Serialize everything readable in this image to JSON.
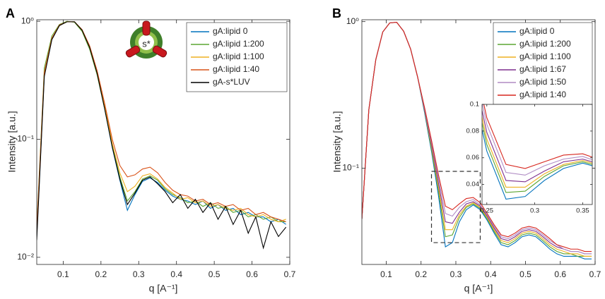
{
  "chart_data": [
    {
      "type": "line",
      "panel_label": "A",
      "icon_label": "s*",
      "xlabel": "q [A⁻¹]",
      "ylabel": "Intensity [a.u.]",
      "xlim": [
        0.03,
        0.7
      ],
      "ylim": [
        0.0087,
        1.03
      ],
      "log_y": true,
      "legend": "northeast",
      "xticks": [
        0.1,
        0.2,
        0.3,
        0.4,
        0.5,
        0.6,
        0.7
      ],
      "yticks": [
        {
          "value": 0.01,
          "label": "10⁻²"
        },
        {
          "value": 0.1,
          "label": "10⁻¹"
        },
        {
          "value": 1,
          "label": "10⁰"
        }
      ],
      "x": [
        0.03,
        0.05,
        0.07,
        0.09,
        0.11,
        0.13,
        0.15,
        0.17,
        0.19,
        0.21,
        0.23,
        0.25,
        0.27,
        0.29,
        0.31,
        0.33,
        0.35,
        0.37,
        0.39,
        0.41,
        0.43,
        0.45,
        0.47,
        0.49,
        0.51,
        0.53,
        0.55,
        0.57,
        0.59,
        0.61,
        0.63,
        0.65,
        0.67,
        0.69
      ],
      "series": [
        {
          "name": "gA:lipid 0",
          "color": "#0072bd",
          "values": [
            0.015,
            0.35,
            0.7,
            0.92,
            0.99,
            0.99,
            0.84,
            0.6,
            0.36,
            0.18,
            0.085,
            0.045,
            0.025,
            0.034,
            0.044,
            0.047,
            0.043,
            0.037,
            0.033,
            0.031,
            0.03,
            0.028,
            0.03,
            0.026,
            0.028,
            0.025,
            0.026,
            0.023,
            0.024,
            0.022,
            0.022,
            0.02,
            0.021,
            0.019
          ]
        },
        {
          "name": "gA:lipid 1:200",
          "color": "#5ca632",
          "values": [
            0.018,
            0.4,
            0.75,
            0.94,
            1.0,
            0.98,
            0.82,
            0.58,
            0.35,
            0.18,
            0.088,
            0.048,
            0.03,
            0.036,
            0.046,
            0.049,
            0.045,
            0.038,
            0.034,
            0.032,
            0.029,
            0.03,
            0.027,
            0.029,
            0.026,
            0.027,
            0.024,
            0.025,
            0.022,
            0.023,
            0.021,
            0.022,
            0.02,
            0.02
          ]
        },
        {
          "name": "gA:lipid 1:100",
          "color": "#edb120",
          "values": [
            0.016,
            0.36,
            0.71,
            0.92,
            0.99,
            0.99,
            0.84,
            0.6,
            0.36,
            0.19,
            0.092,
            0.052,
            0.036,
            0.04,
            0.049,
            0.051,
            0.046,
            0.039,
            0.035,
            0.031,
            0.032,
            0.029,
            0.03,
            0.027,
            0.028,
            0.026,
            0.025,
            0.026,
            0.023,
            0.022,
            0.023,
            0.021,
            0.02,
            0.021
          ]
        },
        {
          "name": "gA:lipid 1:40",
          "color": "#d95319",
          "values": [
            0.017,
            0.37,
            0.72,
            0.93,
            0.99,
            0.99,
            0.85,
            0.62,
            0.38,
            0.2,
            0.1,
            0.06,
            0.048,
            0.05,
            0.056,
            0.058,
            0.052,
            0.043,
            0.037,
            0.034,
            0.033,
            0.03,
            0.031,
            0.028,
            0.029,
            0.027,
            0.028,
            0.025,
            0.026,
            0.023,
            0.024,
            0.022,
            0.021,
            0.02
          ]
        },
        {
          "name": "gA-s*LUV",
          "color": "#000000",
          "values": [
            0.014,
            0.34,
            0.7,
            0.92,
            0.99,
            0.99,
            0.84,
            0.6,
            0.36,
            0.18,
            0.086,
            0.046,
            0.028,
            0.035,
            0.045,
            0.048,
            0.042,
            0.036,
            0.029,
            0.034,
            0.026,
            0.031,
            0.024,
            0.029,
            0.021,
            0.027,
            0.019,
            0.025,
            0.016,
            0.022,
            0.012,
            0.02,
            0.015,
            0.018
          ]
        }
      ]
    },
    {
      "type": "line",
      "panel_label": "B",
      "xlabel": "q [A⁻¹]",
      "ylabel": "Intensity [a.u.]",
      "xlim": [
        0.03,
        0.7
      ],
      "ylim": [
        0.022,
        1.03
      ],
      "log_y": true,
      "legend": "northeast",
      "xticks": [
        0.1,
        0.2,
        0.3,
        0.4,
        0.5,
        0.6,
        0.7
      ],
      "yticks": [
        {
          "value": 0.1,
          "label": "10⁻¹"
        },
        {
          "value": 1,
          "label": "10⁰"
        }
      ],
      "x": [
        0.03,
        0.05,
        0.07,
        0.09,
        0.11,
        0.13,
        0.15,
        0.17,
        0.19,
        0.21,
        0.23,
        0.25,
        0.27,
        0.29,
        0.31,
        0.33,
        0.35,
        0.37,
        0.39,
        0.41,
        0.43,
        0.45,
        0.47,
        0.49,
        0.51,
        0.53,
        0.55,
        0.57,
        0.59,
        0.61,
        0.63,
        0.65,
        0.67,
        0.69
      ],
      "series": [
        {
          "name": "gA:lipid 0",
          "color": "#0072bd",
          "values": [
            0.045,
            0.25,
            0.55,
            0.85,
            0.98,
            0.99,
            0.86,
            0.65,
            0.42,
            0.24,
            0.13,
            0.065,
            0.029,
            0.031,
            0.043,
            0.052,
            0.056,
            0.052,
            0.044,
            0.036,
            0.03,
            0.029,
            0.031,
            0.034,
            0.035,
            0.034,
            0.031,
            0.028,
            0.026,
            0.025,
            0.025,
            0.025,
            0.024,
            0.024
          ]
        },
        {
          "name": "gA:lipid 1:200",
          "color": "#5ca632",
          "values": [
            0.045,
            0.25,
            0.55,
            0.85,
            0.98,
            0.99,
            0.86,
            0.65,
            0.42,
            0.245,
            0.135,
            0.07,
            0.034,
            0.035,
            0.046,
            0.054,
            0.057,
            0.053,
            0.045,
            0.037,
            0.031,
            0.03,
            0.032,
            0.035,
            0.036,
            0.035,
            0.032,
            0.029,
            0.027,
            0.026,
            0.026,
            0.025,
            0.025,
            0.025
          ]
        },
        {
          "name": "gA:lipid 1:100",
          "color": "#edb120",
          "values": [
            0.045,
            0.25,
            0.55,
            0.85,
            0.98,
            0.99,
            0.86,
            0.65,
            0.42,
            0.25,
            0.14,
            0.074,
            0.038,
            0.038,
            0.048,
            0.055,
            0.058,
            0.054,
            0.046,
            0.038,
            0.032,
            0.031,
            0.033,
            0.036,
            0.037,
            0.036,
            0.033,
            0.03,
            0.028,
            0.027,
            0.026,
            0.026,
            0.025,
            0.025
          ]
        },
        {
          "name": "gA:lipid 1:67",
          "color": "#7e2f8e",
          "values": [
            0.045,
            0.25,
            0.55,
            0.85,
            0.98,
            0.99,
            0.86,
            0.65,
            0.42,
            0.25,
            0.145,
            0.079,
            0.043,
            0.042,
            0.05,
            0.057,
            0.059,
            0.055,
            0.047,
            0.039,
            0.033,
            0.032,
            0.034,
            0.037,
            0.038,
            0.037,
            0.034,
            0.031,
            0.029,
            0.028,
            0.027,
            0.027,
            0.026,
            0.026
          ]
        },
        {
          "name": "gA:lipid 1:50",
          "color": "#b08cc4",
          "values": [
            0.045,
            0.25,
            0.55,
            0.85,
            0.98,
            0.99,
            0.86,
            0.65,
            0.42,
            0.255,
            0.15,
            0.085,
            0.049,
            0.047,
            0.054,
            0.059,
            0.061,
            0.056,
            0.048,
            0.04,
            0.034,
            0.033,
            0.035,
            0.038,
            0.039,
            0.038,
            0.035,
            0.032,
            0.03,
            0.028,
            0.027,
            0.027,
            0.026,
            0.026
          ]
        },
        {
          "name": "gA:lipid 1:40",
          "color": "#d7261e",
          "values": [
            0.045,
            0.25,
            0.55,
            0.85,
            0.98,
            0.99,
            0.86,
            0.65,
            0.42,
            0.26,
            0.155,
            0.09,
            0.055,
            0.052,
            0.057,
            0.062,
            0.063,
            0.058,
            0.049,
            0.041,
            0.035,
            0.034,
            0.036,
            0.039,
            0.04,
            0.039,
            0.036,
            0.033,
            0.03,
            0.029,
            0.028,
            0.028,
            0.027,
            0.027
          ]
        }
      ],
      "inset": {
        "region": {
          "xlim": [
            0.23,
            0.37
          ],
          "ylim": [
            0.031,
            0.095
          ]
        },
        "xlim": [
          0.245,
          0.36
        ],
        "ylim": [
          0.025,
          0.1
        ],
        "xticks": [
          0.25,
          0.3,
          0.35
        ],
        "yticks": [
          0.04,
          0.06,
          0.08,
          0.1
        ]
      }
    }
  ]
}
